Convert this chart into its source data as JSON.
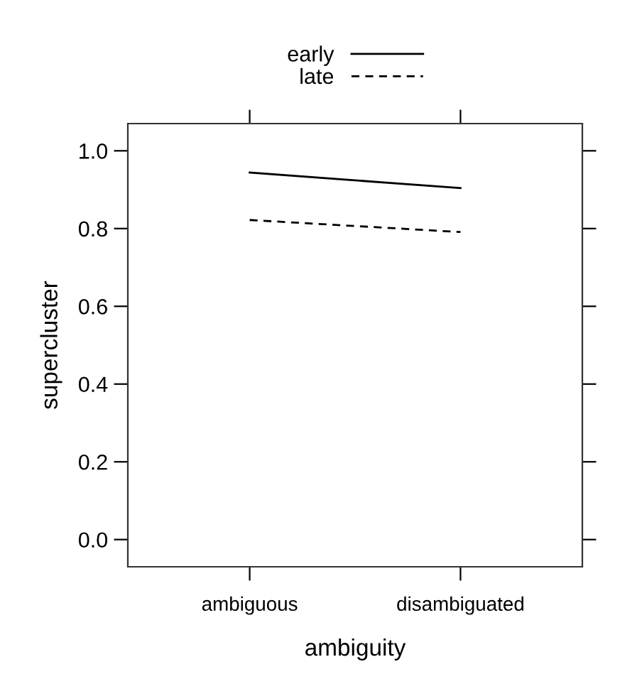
{
  "chart_data": {
    "type": "line",
    "categories": [
      "ambiguous",
      "disambiguated"
    ],
    "series": [
      {
        "name": "early",
        "color": "#000000",
        "line_style": "solid",
        "values": [
          0.944,
          0.904
        ]
      },
      {
        "name": "late",
        "color": "#000000",
        "line_style": "dashed",
        "values": [
          0.822,
          0.791
        ]
      }
    ],
    "xlabel": "ambiguity",
    "ylabel": "supercluster",
    "ylim": [
      -0.07,
      1.07
    ],
    "yticks": [
      {
        "value": 0,
        "label": "0.0"
      },
      {
        "value": 0.2,
        "label": "0.2"
      },
      {
        "value": 0.4,
        "label": "0.4"
      },
      {
        "value": 0.6,
        "label": "0.6"
      },
      {
        "value": 0.8,
        "label": "0.8"
      },
      {
        "value": 1,
        "label": "1.0"
      }
    ],
    "grid": false,
    "legend": "top",
    "marker": "none"
  }
}
